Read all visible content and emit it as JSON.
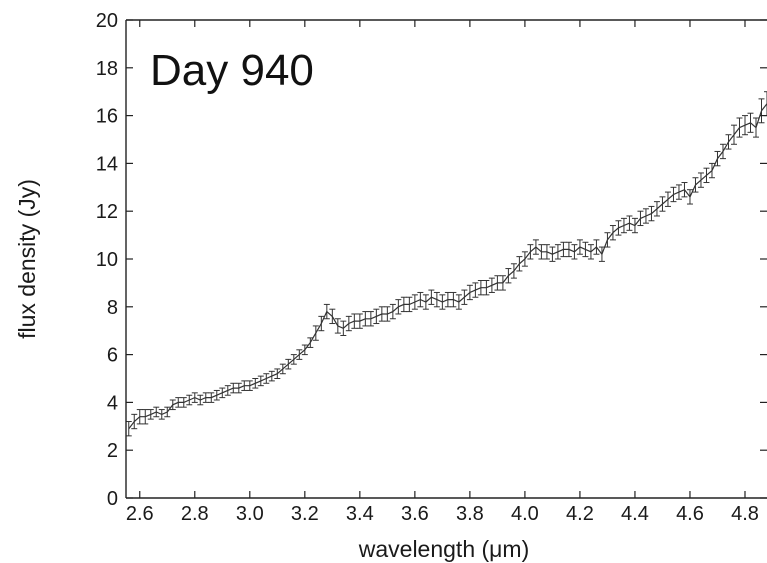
{
  "chart_data": {
    "type": "line",
    "annotation": "Day 940",
    "xlabel": "wavelength (μm)",
    "ylabel": "flux density (Jy)",
    "xlim": [
      2.55,
      4.88
    ],
    "ylim": [
      0,
      20
    ],
    "xticks": [
      "2.6",
      "2.8",
      "3.0",
      "3.2",
      "3.4",
      "3.6",
      "3.8",
      "4.0",
      "4.2",
      "4.4",
      "4.6",
      "4.8"
    ],
    "yticks": [
      "0",
      "2",
      "4",
      "6",
      "8",
      "10",
      "12",
      "14",
      "16",
      "18",
      "20"
    ],
    "grid": false,
    "error_bars": true,
    "series": [
      {
        "x": [
          2.56,
          2.58,
          2.6,
          2.62,
          2.64,
          2.66,
          2.68,
          2.7,
          2.72,
          2.74,
          2.76,
          2.78,
          2.8,
          2.82,
          2.84,
          2.86,
          2.88,
          2.9,
          2.92,
          2.94,
          2.96,
          2.98,
          3.0,
          3.02,
          3.04,
          3.06,
          3.08,
          3.1,
          3.12,
          3.14,
          3.16,
          3.18,
          3.2,
          3.22,
          3.24,
          3.26,
          3.28,
          3.3,
          3.32,
          3.34,
          3.36,
          3.38,
          3.4,
          3.42,
          3.44,
          3.46,
          3.48,
          3.5,
          3.52,
          3.54,
          3.56,
          3.58,
          3.6,
          3.62,
          3.64,
          3.66,
          3.68,
          3.7,
          3.72,
          3.74,
          3.76,
          3.78,
          3.8,
          3.82,
          3.84,
          3.86,
          3.88,
          3.9,
          3.92,
          3.94,
          3.96,
          3.98,
          4.0,
          4.02,
          4.04,
          4.06,
          4.08,
          4.1,
          4.12,
          4.14,
          4.16,
          4.18,
          4.2,
          4.22,
          4.24,
          4.26,
          4.28,
          4.3,
          4.32,
          4.34,
          4.36,
          4.38,
          4.4,
          4.42,
          4.44,
          4.46,
          4.48,
          4.5,
          4.52,
          4.54,
          4.56,
          4.58,
          4.6,
          4.62,
          4.64,
          4.66,
          4.68,
          4.7,
          4.72,
          4.74,
          4.76,
          4.78,
          4.8,
          4.82,
          4.84,
          4.86,
          4.88
        ],
        "values": [
          2.9,
          3.2,
          3.4,
          3.4,
          3.5,
          3.6,
          3.5,
          3.6,
          3.9,
          4.0,
          4.0,
          4.1,
          4.2,
          4.1,
          4.2,
          4.2,
          4.3,
          4.4,
          4.5,
          4.6,
          4.6,
          4.7,
          4.7,
          4.8,
          4.9,
          5.0,
          5.1,
          5.2,
          5.4,
          5.6,
          5.8,
          6.0,
          6.2,
          6.5,
          6.9,
          7.3,
          7.8,
          7.6,
          7.2,
          7.1,
          7.3,
          7.4,
          7.4,
          7.5,
          7.5,
          7.6,
          7.7,
          7.7,
          7.8,
          8.0,
          8.1,
          8.1,
          8.2,
          8.3,
          8.2,
          8.4,
          8.3,
          8.2,
          8.3,
          8.3,
          8.2,
          8.4,
          8.6,
          8.7,
          8.8,
          8.8,
          8.9,
          9.0,
          9.0,
          9.3,
          9.5,
          9.8,
          10.0,
          10.3,
          10.5,
          10.3,
          10.3,
          10.2,
          10.3,
          10.4,
          10.4,
          10.3,
          10.5,
          10.4,
          10.3,
          10.5,
          10.2,
          10.8,
          11.1,
          11.3,
          11.4,
          11.5,
          11.4,
          11.7,
          11.8,
          11.9,
          12.1,
          12.3,
          12.5,
          12.7,
          12.8,
          12.9,
          12.6,
          13.1,
          13.3,
          13.5,
          13.7,
          14.2,
          14.5,
          14.9,
          15.2,
          15.5,
          15.6,
          15.7,
          15.5,
          16.2,
          16.5
        ],
        "errors": [
          0.3,
          0.3,
          0.3,
          0.3,
          0.2,
          0.2,
          0.2,
          0.2,
          0.2,
          0.2,
          0.2,
          0.2,
          0.2,
          0.2,
          0.2,
          0.2,
          0.2,
          0.2,
          0.2,
          0.2,
          0.2,
          0.2,
          0.2,
          0.2,
          0.2,
          0.2,
          0.2,
          0.2,
          0.2,
          0.2,
          0.2,
          0.2,
          0.2,
          0.2,
          0.3,
          0.3,
          0.3,
          0.3,
          0.3,
          0.3,
          0.3,
          0.3,
          0.3,
          0.3,
          0.3,
          0.3,
          0.3,
          0.3,
          0.3,
          0.3,
          0.3,
          0.3,
          0.3,
          0.3,
          0.3,
          0.3,
          0.3,
          0.3,
          0.3,
          0.3,
          0.3,
          0.3,
          0.3,
          0.3,
          0.3,
          0.3,
          0.3,
          0.3,
          0.3,
          0.3,
          0.3,
          0.3,
          0.3,
          0.3,
          0.3,
          0.3,
          0.3,
          0.3,
          0.3,
          0.3,
          0.3,
          0.3,
          0.3,
          0.3,
          0.3,
          0.3,
          0.3,
          0.3,
          0.3,
          0.3,
          0.3,
          0.3,
          0.3,
          0.3,
          0.3,
          0.3,
          0.3,
          0.3,
          0.3,
          0.3,
          0.3,
          0.3,
          0.3,
          0.3,
          0.3,
          0.3,
          0.3,
          0.3,
          0.3,
          0.3,
          0.4,
          0.4,
          0.4,
          0.4,
          0.4,
          0.5,
          0.5
        ]
      }
    ]
  },
  "colors": {
    "line": "#333333",
    "axis": "#222222",
    "text": "#1a1a1a"
  }
}
